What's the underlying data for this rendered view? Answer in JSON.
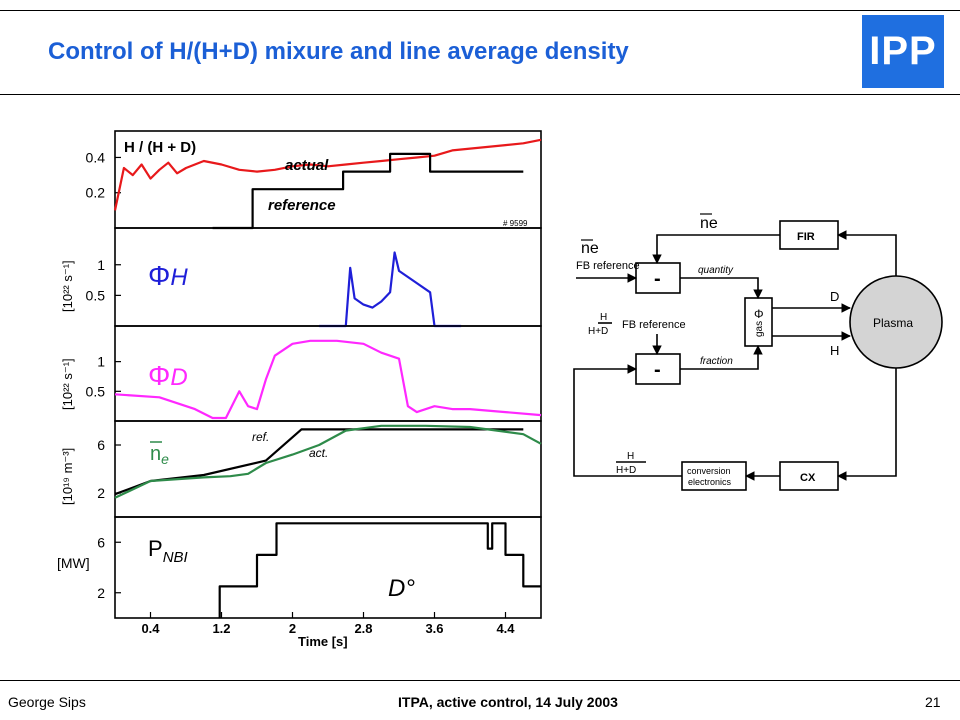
{
  "slide": {
    "title": "Control of H/(H+D) mixure and line average density",
    "logo_text": "IPP",
    "footer": {
      "author": "George Sips",
      "event": "ITPA, active control, 14 July 2003",
      "page": "21"
    },
    "colors": {
      "title": "#1b5fd6",
      "logo_bg": "#1f6fe0"
    }
  },
  "chart_data": [
    {
      "type": "line",
      "panel": "H/(H+D)",
      "title": "H / (H + D)",
      "shot": "# 9599",
      "ylim": [
        0,
        0.55
      ],
      "yticks": [
        0.2,
        0.4
      ],
      "ytick_labels": [
        "0.2",
        "0.4"
      ],
      "series": [
        {
          "name": "actual",
          "color": "#e8191b",
          "x": [
            0.0,
            0.1,
            0.2,
            0.3,
            0.4,
            0.5,
            0.6,
            0.7,
            0.8,
            1.0,
            1.2,
            1.4,
            1.6,
            1.8,
            2.0,
            2.2,
            2.4,
            2.6,
            2.8,
            3.0,
            3.2,
            3.4,
            3.6,
            3.8,
            4.0,
            4.2,
            4.4,
            4.6,
            4.8
          ],
          "y": [
            0.1,
            0.34,
            0.3,
            0.36,
            0.28,
            0.33,
            0.37,
            0.31,
            0.34,
            0.38,
            0.36,
            0.33,
            0.32,
            0.33,
            0.35,
            0.36,
            0.35,
            0.36,
            0.37,
            0.38,
            0.39,
            0.4,
            0.41,
            0.44,
            0.45,
            0.46,
            0.47,
            0.48,
            0.5
          ]
        },
        {
          "name": "reference",
          "color": "#000000",
          "x": [
            1.1,
            1.55,
            1.55,
            2.57,
            2.57,
            3.1,
            3.1,
            3.55,
            3.55,
            4.6
          ],
          "y": [
            0.0,
            0.0,
            0.22,
            0.22,
            0.32,
            0.32,
            0.42,
            0.42,
            0.32,
            0.32
          ]
        }
      ],
      "annotations": [
        "actual",
        "reference"
      ]
    },
    {
      "type": "line",
      "panel": "PhiH",
      "label": "ΦH",
      "ylabel": "[10²² s⁻¹]",
      "ylim": [
        0,
        1.6
      ],
      "yticks": [
        0.5,
        1
      ],
      "ytick_labels": [
        "0.5",
        "1"
      ],
      "series": [
        {
          "name": "ΦH",
          "color": "#1f1fd8",
          "x": [
            2.3,
            2.6,
            2.65,
            2.7,
            2.8,
            2.9,
            3.0,
            3.1,
            3.15,
            3.2,
            3.3,
            3.4,
            3.55,
            3.6,
            3.9
          ],
          "y": [
            0.0,
            0.0,
            0.95,
            0.45,
            0.35,
            0.3,
            0.4,
            0.55,
            1.2,
            0.9,
            0.8,
            0.7,
            0.55,
            0.0,
            0.0
          ]
        }
      ]
    },
    {
      "type": "line",
      "panel": "PhiD",
      "label": "ΦD",
      "ylabel": "[10²² s⁻¹]",
      "ylim": [
        0,
        1.6
      ],
      "yticks": [
        0.5,
        1
      ],
      "ytick_labels": [
        "0.5",
        "1"
      ],
      "series": [
        {
          "name": "ΦD",
          "color": "#ff28ff",
          "x": [
            0.0,
            0.5,
            0.9,
            1.1,
            1.25,
            1.4,
            1.5,
            1.6,
            1.7,
            1.8,
            2.0,
            2.2,
            2.5,
            2.8,
            3.0,
            3.2,
            3.3,
            3.4,
            3.6,
            3.8,
            4.0,
            4.4,
            4.8
          ],
          "y": [
            0.45,
            0.4,
            0.2,
            0.05,
            0.05,
            0.5,
            0.25,
            0.2,
            0.7,
            1.1,
            1.3,
            1.35,
            1.35,
            1.3,
            1.15,
            1.05,
            0.25,
            0.15,
            0.25,
            0.2,
            0.2,
            0.15,
            0.1
          ]
        }
      ]
    },
    {
      "type": "line",
      "panel": "ne",
      "label": "ne",
      "ylabel": "[10¹⁹ m⁻³]",
      "ylim": [
        0,
        8
      ],
      "yticks": [
        2,
        6
      ],
      "ytick_labels": [
        "2",
        "6"
      ],
      "series": [
        {
          "name": "ref.",
          "color": "#000000",
          "x": [
            0.0,
            0.4,
            1.0,
            1.7,
            2.1,
            2.6,
            4.6
          ],
          "y": [
            1.9,
            3.0,
            3.5,
            4.7,
            7.3,
            7.3,
            7.3
          ]
        },
        {
          "name": "act.",
          "color": "#2e8b4a",
          "x": [
            0.0,
            0.4,
            1.0,
            1.3,
            1.5,
            1.7,
            2.0,
            2.3,
            2.6,
            3.0,
            3.5,
            4.0,
            4.6,
            4.8
          ],
          "y": [
            1.6,
            3.0,
            3.3,
            3.4,
            3.6,
            4.5,
            5.2,
            6.0,
            7.2,
            7.6,
            7.6,
            7.5,
            6.9,
            6.1
          ]
        }
      ],
      "annotations": [
        "ref.",
        "act."
      ]
    },
    {
      "type": "line",
      "panel": "PNBI",
      "label": "PNBI",
      "ylabel": "[MW]",
      "xlabel": "Time [s]",
      "xlim": [
        0.0,
        4.8
      ],
      "xticks": [
        0.4,
        1.2,
        2,
        2.8,
        3.6,
        4.4
      ],
      "xtick_labels": [
        "0.4",
        "1.2",
        "2",
        "2.8",
        "3.6",
        "4.4"
      ],
      "ylim": [
        0,
        8
      ],
      "yticks": [
        2,
        6
      ],
      "ytick_labels": [
        "2",
        "6"
      ],
      "series": [
        {
          "name": "PNBI",
          "color": "#000000",
          "x": [
            1.18,
            1.18,
            1.6,
            1.6,
            1.82,
            1.82,
            4.2,
            4.2,
            4.25,
            4.25,
            4.4,
            4.4,
            4.6,
            4.6,
            4.8
          ],
          "y": [
            0,
            2.5,
            2.5,
            5.0,
            5.0,
            7.5,
            7.5,
            5.5,
            5.5,
            7.5,
            7.5,
            5.0,
            5.0,
            2.5,
            2.5
          ]
        }
      ],
      "annotations": [
        "D°"
      ]
    }
  ],
  "diagram": {
    "blocks": [
      "FIR",
      "Plasma",
      "CX",
      "conversion electronics",
      "Φ gas",
      "-",
      "-"
    ],
    "labels": {
      "ne_top": "ne",
      "ne_ref": "ne",
      "fb_ref_1": "FB reference",
      "fb_ref_2": "FB reference",
      "quantity": "quantity",
      "fraction": "fraction",
      "D": "D",
      "H": "H",
      "frac_num": "H",
      "frac_den": "H+D",
      "minus": "-",
      "fir": "FIR",
      "plasma": "Plasma",
      "cx": "CX",
      "conv_1": "conversion",
      "conv_2": "electronics",
      "phi": "Φ",
      "gas": "gas"
    }
  }
}
